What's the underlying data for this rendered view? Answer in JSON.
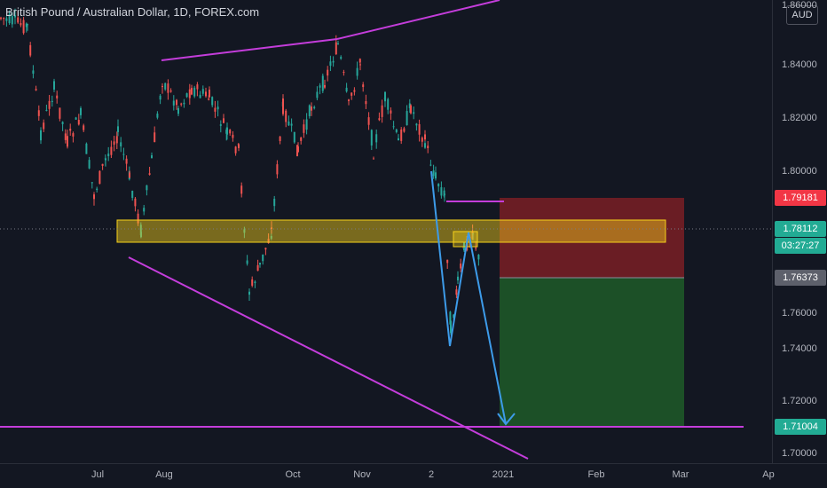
{
  "header": {
    "symbol_title": "British Pound / Australian Dollar, 1D, FOREX.com",
    "currency_badge": "AUD"
  },
  "price_axis": {
    "ticks": [
      "1.86000",
      "1.84000",
      "1.82000",
      "1.80000",
      "1.76000",
      "1.74000",
      "1.72000",
      "1.70000"
    ],
    "tags": {
      "stop_price": "1.79181",
      "last_price": "1.78112",
      "countdown": "03:27:27",
      "entry_price": "1.76373",
      "target_price": "1.71004"
    }
  },
  "time_axis": {
    "labels": [
      "Jul",
      "Aug",
      "Oct",
      "Nov",
      "2",
      "2021",
      "Feb",
      "Mar",
      "Ap"
    ]
  },
  "colors": {
    "background": "#131722",
    "up_candle": "#26a69a",
    "down_candle": "#ef5350",
    "trendline": "#c43ddb",
    "zone": "#f7d11a",
    "projection_arrow": "#3d9be9",
    "stop_area": "#7a1f24",
    "target_area": "#1e5b28"
  }
}
